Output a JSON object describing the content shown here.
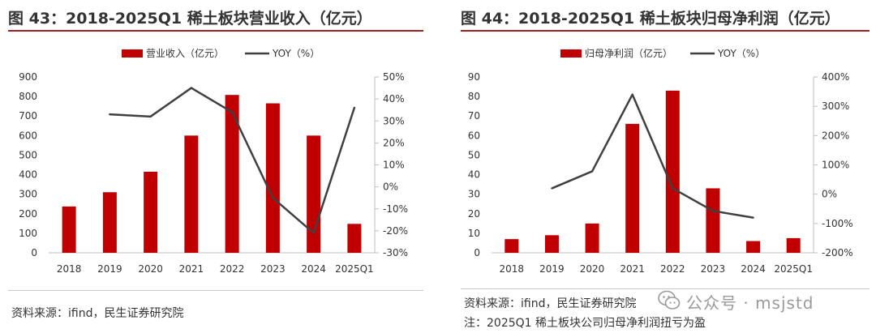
{
  "left": {
    "title": "图 43：2018-2025Q1 稀土板块营业收入（亿元）",
    "source": "资料来源：ifind，民生证券研究院",
    "chart_data": {
      "type": "bar",
      "categories": [
        "2018",
        "2019",
        "2020",
        "2021",
        "2022",
        "2023",
        "2024",
        "2025Q1"
      ],
      "series": [
        {
          "name": "营业收入（亿元）",
          "type": "bar",
          "axis": "left",
          "color": "#c00000",
          "values": [
            237,
            310,
            415,
            600,
            808,
            765,
            600,
            148
          ]
        },
        {
          "name": "YOY（%）",
          "type": "line",
          "axis": "right",
          "color": "#404040",
          "values": [
            null,
            33,
            32,
            45,
            34,
            -5,
            -21,
            36
          ]
        }
      ],
      "y_left": {
        "range": [
          0,
          900
        ],
        "ticks": [
          0,
          100,
          200,
          300,
          400,
          500,
          600,
          700,
          800,
          900
        ],
        "tick_labels": [
          "0",
          "100",
          "200",
          "300",
          "400",
          "500",
          "600",
          "700",
          "800",
          "900"
        ]
      },
      "y_right": {
        "range": [
          -30,
          50
        ],
        "ticks": [
          -30,
          -20,
          -10,
          0,
          10,
          20,
          30,
          40,
          50
        ],
        "tick_labels": [
          "-30%",
          "-20%",
          "-10%",
          "0%",
          "10%",
          "20%",
          "30%",
          "40%",
          "50%"
        ]
      },
      "grid": false,
      "legend": "top-center"
    }
  },
  "right": {
    "title": "图 44：2018-2025Q1 稀土板块归母净利润（亿元）",
    "source": "资料来源：ifind，民生证券研究院",
    "note": "注：2025Q1 稀土板块公司归母净利润扭亏为盈",
    "chart_data": {
      "type": "bar",
      "categories": [
        "2018",
        "2019",
        "2020",
        "2021",
        "2022",
        "2023",
        "2024",
        "2025Q1"
      ],
      "series": [
        {
          "name": "归母净利润（亿元）",
          "type": "bar",
          "axis": "left",
          "color": "#c00000",
          "values": [
            7,
            9,
            15,
            66,
            83,
            33,
            6,
            7.5
          ]
        },
        {
          "name": "YOY（%）",
          "type": "line",
          "axis": "right",
          "color": "#404040",
          "values": [
            null,
            20,
            78,
            340,
            20,
            -57,
            -80,
            null
          ]
        }
      ],
      "y_left": {
        "range": [
          0,
          90
        ],
        "ticks": [
          0,
          10,
          20,
          30,
          40,
          50,
          60,
          70,
          80,
          90
        ],
        "tick_labels": [
          "0",
          "10",
          "20",
          "30",
          "40",
          "50",
          "60",
          "70",
          "80",
          "90"
        ]
      },
      "y_right": {
        "range": [
          -200,
          400
        ],
        "ticks": [
          -200,
          -100,
          0,
          100,
          200,
          300,
          400
        ],
        "tick_labels": [
          "-200%",
          "-100%",
          "0%",
          "100%",
          "200%",
          "300%",
          "400%"
        ]
      },
      "grid": false,
      "legend": "top-center"
    }
  },
  "watermark": {
    "text": "公众号 · msjstd",
    "icon": "wechat-icon"
  }
}
